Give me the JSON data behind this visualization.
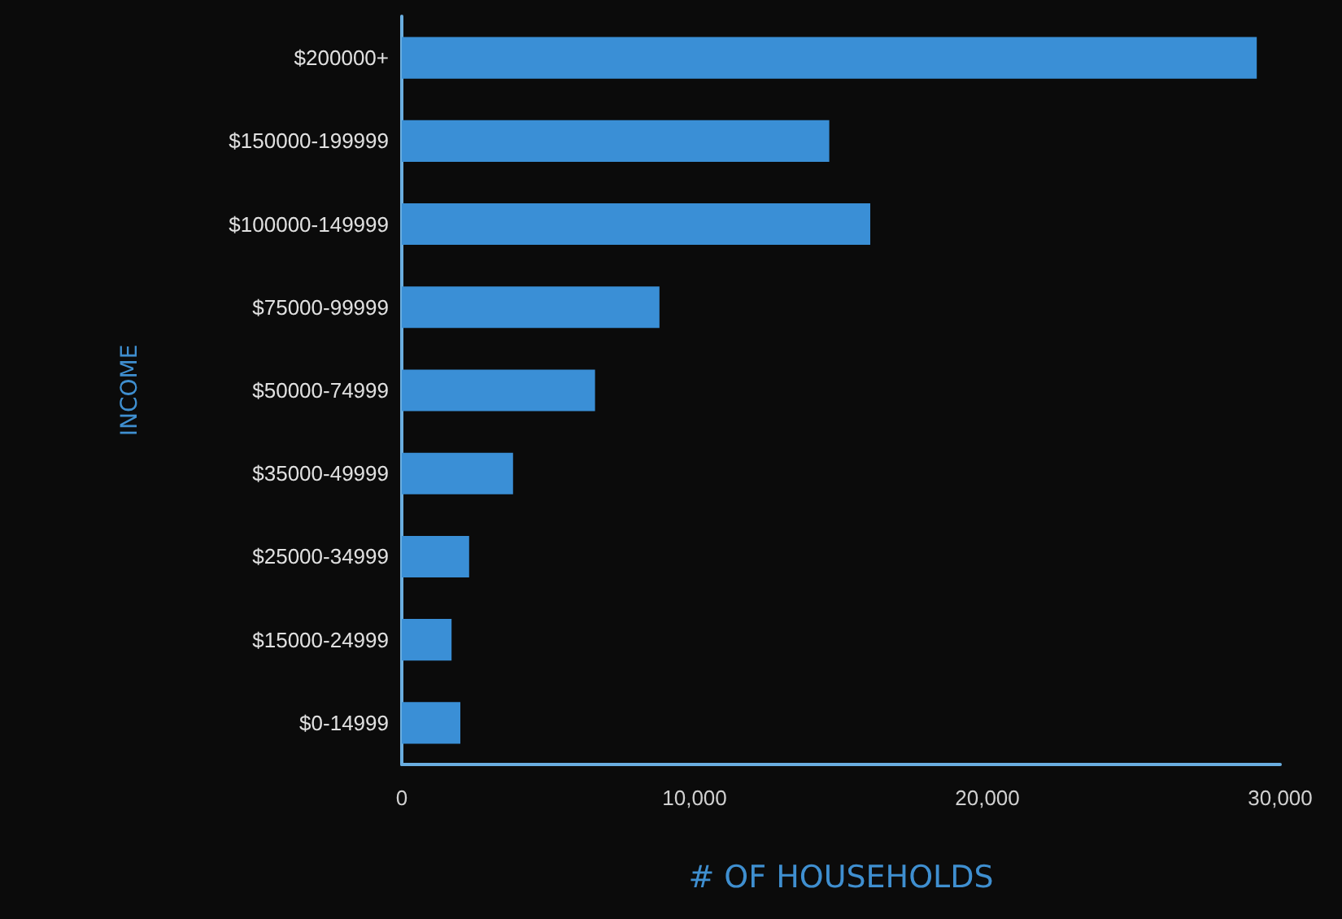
{
  "chart_data": {
    "type": "bar",
    "orientation": "horizontal",
    "xlabel": "# OF HOUSEHOLDS",
    "ylabel": "INCOME",
    "categories": [
      "$200000+",
      "$150000-199999",
      "$100000-149999",
      "$75000-99999",
      "$50000-74999",
      "$35000-49999",
      "$25000-34999",
      "$15000-24999",
      "$0-14999"
    ],
    "values": [
      29200,
      14600,
      16000,
      8800,
      6600,
      3800,
      2300,
      1700,
      2000
    ],
    "color": "#3a8fd6",
    "xlim": [
      0,
      30000
    ],
    "xticks": [
      0,
      {
        "value": 10000,
        "label": "10,000"
      },
      {
        "value": 20000,
        "label": "20,000"
      },
      {
        "value": 30000,
        "label": "30,000"
      }
    ],
    "grid": false
  }
}
